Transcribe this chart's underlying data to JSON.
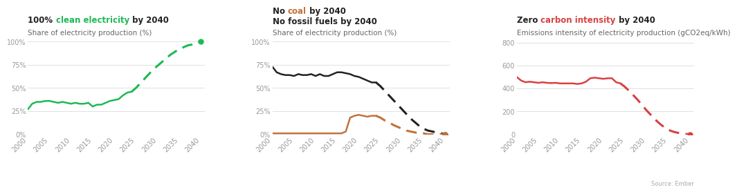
{
  "bg_color": "#ffffff",
  "panel_bg": "#ffffff",
  "chart1": {
    "title_prefix": "100% ",
    "title_colored": "clean electricity",
    "title_suffix": " by 2040",
    "title_color": "#1db954",
    "title_prefix_color": "#222222",
    "title_suffix_color": "#222222",
    "subtitle": "Share of electricity production (%)",
    "ylabel_ticks": [
      "0%",
      "25%",
      "50%",
      "75%",
      "100%"
    ],
    "ytick_vals": [
      0,
      25,
      50,
      75,
      100
    ],
    "ylim": [
      0,
      105
    ],
    "color": "#1db954",
    "solid_years": [
      2000,
      2001,
      2002,
      2003,
      2004,
      2005,
      2006,
      2007,
      2008,
      2009,
      2010,
      2011,
      2012,
      2013,
      2014,
      2015,
      2016,
      2017,
      2018,
      2019,
      2020,
      2021,
      2022,
      2023,
      2024
    ],
    "solid_vals": [
      27,
      33,
      35,
      35,
      36,
      36,
      35,
      34,
      35,
      34,
      33,
      34,
      33,
      33,
      34,
      30,
      32,
      32,
      34,
      36,
      37,
      38,
      42,
      45,
      46
    ],
    "dashed_years": [
      2024,
      2025,
      2026,
      2027,
      2028,
      2029,
      2030,
      2031,
      2032,
      2033,
      2034,
      2035,
      2036,
      2037,
      2038,
      2039,
      2040
    ],
    "dashed_vals": [
      46,
      50,
      55,
      60,
      65,
      70,
      74,
      78,
      82,
      86,
      89,
      92,
      94,
      96,
      97,
      99,
      100
    ],
    "endpoint_year": 2040,
    "endpoint_val": 100
  },
  "chart2": {
    "title_line1_prefix": "No ",
    "title_line1_colored": "coal",
    "title_line1_suffix": " by 2040",
    "title_line1_color": "#c0733a",
    "title_line1_prefix_color": "#222222",
    "title_line1_suffix_color": "#222222",
    "title_line2": "No fossil fuels by 2040",
    "title_line2_color": "#222222",
    "subtitle": "Share of electricity production (%)",
    "ylim": [
      0,
      105
    ],
    "ylabel_ticks": [
      "0%",
      "25%",
      "50%",
      "75%",
      "100%"
    ],
    "ytick_vals": [
      0,
      25,
      50,
      75,
      100
    ],
    "color_black": "#222222",
    "color_brown": "#c0733a",
    "black_solid_years": [
      2000,
      2001,
      2002,
      2003,
      2004,
      2005,
      2006,
      2007,
      2008,
      2009,
      2010,
      2011,
      2012,
      2013,
      2014,
      2015,
      2016,
      2017,
      2018,
      2019,
      2020,
      2021,
      2022,
      2023,
      2024
    ],
    "black_solid_vals": [
      73,
      67,
      65,
      64,
      64,
      63,
      65,
      64,
      64,
      65,
      63,
      65,
      63,
      63,
      65,
      67,
      67,
      66,
      65,
      63,
      62,
      60,
      58,
      56,
      56
    ],
    "black_dashed_years": [
      2024,
      2025,
      2026,
      2027,
      2028,
      2029,
      2030,
      2031,
      2032,
      2033,
      2034,
      2035,
      2036,
      2037,
      2038,
      2039,
      2040
    ],
    "black_dashed_vals": [
      56,
      52,
      47,
      42,
      37,
      32,
      27,
      22,
      17,
      13,
      9,
      6,
      4,
      3,
      2,
      1,
      0
    ],
    "brown_solid_years": [
      2000,
      2001,
      2002,
      2003,
      2004,
      2005,
      2006,
      2007,
      2008,
      2009,
      2010,
      2011,
      2012,
      2013,
      2014,
      2015,
      2016,
      2017,
      2018,
      2019,
      2020,
      2021,
      2022,
      2023,
      2024
    ],
    "brown_solid_vals": [
      1,
      1,
      1,
      1,
      1,
      1,
      1,
      1,
      1,
      1,
      1,
      1,
      1,
      1,
      1,
      1,
      1,
      3,
      18,
      20,
      21,
      20,
      19,
      20,
      20
    ],
    "brown_dashed_years": [
      2024,
      2025,
      2026,
      2027,
      2028,
      2029,
      2030,
      2031,
      2032,
      2033,
      2034,
      2035,
      2036,
      2037,
      2038,
      2039,
      2040
    ],
    "brown_dashed_vals": [
      20,
      18,
      15,
      13,
      10,
      8,
      6,
      4,
      3,
      2,
      1,
      1,
      0,
      0,
      0,
      0,
      0
    ],
    "black_endpoint_year": 2040,
    "black_endpoint_val": 0,
    "brown_endpoint_year": 2040,
    "brown_endpoint_val": 0
  },
  "chart3": {
    "title_prefix": "Zero ",
    "title_colored": "carbon intensity",
    "title_suffix": " by 2040",
    "title_color": "#d94040",
    "title_prefix_color": "#222222",
    "title_suffix_color": "#222222",
    "subtitle": "Emissions intensity of electricity production (gCO2eq/kWh)",
    "ylim": [
      0,
      850
    ],
    "ylabel_ticks": [
      "0",
      "200",
      "400",
      "600",
      "800"
    ],
    "ytick_vals": [
      0,
      200,
      400,
      600,
      800
    ],
    "color": "#d94040",
    "solid_years": [
      2000,
      2001,
      2002,
      2003,
      2004,
      2005,
      2006,
      2007,
      2008,
      2009,
      2010,
      2011,
      2012,
      2013,
      2014,
      2015,
      2016,
      2017,
      2018,
      2019,
      2020,
      2021,
      2022,
      2023,
      2024
    ],
    "solid_vals": [
      500,
      470,
      455,
      460,
      455,
      450,
      455,
      450,
      448,
      450,
      445,
      445,
      445,
      445,
      440,
      445,
      460,
      490,
      495,
      490,
      485,
      490,
      490,
      455,
      445
    ],
    "dashed_years": [
      2024,
      2025,
      2026,
      2027,
      2028,
      2029,
      2030,
      2031,
      2032,
      2033,
      2034,
      2035,
      2036,
      2037,
      2038,
      2039,
      2040
    ],
    "dashed_vals": [
      445,
      415,
      380,
      340,
      300,
      255,
      210,
      170,
      130,
      95,
      65,
      40,
      25,
      15,
      8,
      3,
      0
    ],
    "endpoint_year": 2040,
    "endpoint_val": 0
  },
  "source_text": "Source: Ember",
  "title_fontsize": 8.5,
  "subtitle_fontsize": 7.5,
  "tick_fontsize": 7,
  "linewidth": 1.8,
  "dash_linewidth": 2.2,
  "endpoint_markersize": 5
}
